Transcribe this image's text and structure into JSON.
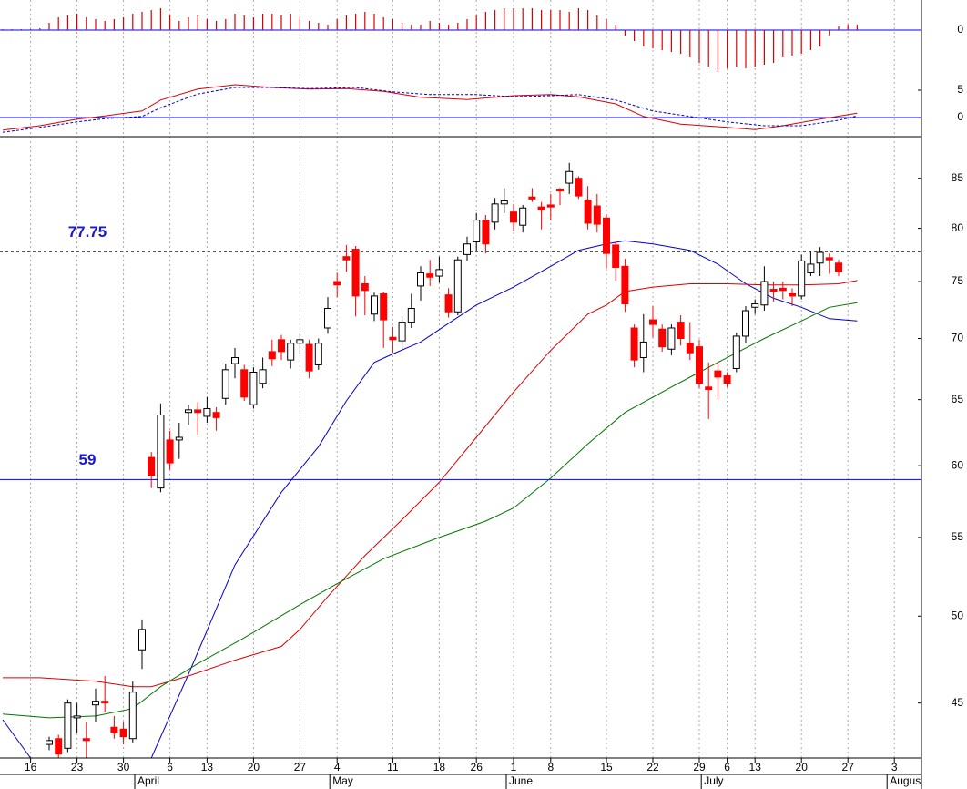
{
  "chart_data": [
    {
      "type": "bar",
      "color": "#dd0000",
      "ylim": [
        -58.5,
        16.5
      ],
      "yticks": [
        0
      ],
      "values": [
        0.5,
        0.5,
        0.5,
        0.5,
        1,
        4,
        7,
        8,
        9,
        7,
        6,
        5,
        6,
        7,
        9,
        10,
        11,
        12,
        8,
        5,
        7,
        8,
        6,
        5,
        6,
        9,
        8,
        7,
        9,
        9,
        8,
        9,
        7,
        5,
        4,
        3,
        6,
        8,
        9,
        10,
        9,
        7,
        6,
        4,
        3,
        3,
        5,
        4,
        3,
        4,
        6,
        8,
        10,
        11,
        12,
        12,
        12,
        12,
        11,
        11,
        11,
        10,
        12,
        11,
        8,
        6,
        3,
        -3,
        -6,
        -9,
        -10,
        -11,
        -12,
        -13,
        -15,
        -18,
        -20,
        -23,
        -21,
        -20,
        -21,
        -20,
        -19,
        -18,
        -15,
        -14,
        -13,
        -11,
        -9,
        -3,
        2,
        3,
        3
      ]
    },
    {
      "type": "line",
      "ylim": [
        -3.5,
        21.5
      ],
      "yticks": [
        0,
        5
      ],
      "zero_color": "#0000ff",
      "series": [
        {
          "color": "#dd0000",
          "dashed": false,
          "x": [
            0,
            4,
            8,
            11,
            15,
            17,
            21,
            25,
            29,
            33,
            37,
            41,
            45,
            50,
            55,
            59,
            62,
            66,
            69,
            73,
            78,
            81,
            84,
            88,
            92
          ],
          "values": [
            -2.3,
            -1.5,
            -0.3,
            0.3,
            1.2,
            3.2,
            5.2,
            6,
            5.5,
            5.2,
            5.3,
            4.8,
            3.7,
            3.3,
            4,
            4.2,
            3.8,
            2.5,
            0.2,
            -1.2,
            -1.8,
            -2.2,
            -1.5,
            -0.3,
            0.8
          ]
        },
        {
          "color": "#0000cc",
          "dashed": true,
          "x": [
            0,
            4,
            8,
            11,
            15,
            17,
            21,
            25,
            29,
            33,
            38,
            42,
            46,
            51,
            55,
            59,
            62,
            66,
            70,
            74,
            78,
            82,
            86,
            90,
            92
          ],
          "values": [
            -2.7,
            -1.8,
            -0.8,
            -0.2,
            0.2,
            1.8,
            4.3,
            5.5,
            5.5,
            5.3,
            5.5,
            4.7,
            4.2,
            4.2,
            3.8,
            4,
            4.2,
            3.2,
            1.2,
            0.2,
            -0.8,
            -1.5,
            -1.5,
            -0.5,
            0.3
          ]
        }
      ]
    },
    {
      "type": "candlestick",
      "log_scale": true,
      "grid": true,
      "ylim": [
        42.1,
        89.4
      ],
      "yticks": [
        85,
        80,
        75,
        70,
        65,
        60,
        55,
        50,
        45
      ],
      "up_color": "#ffffff",
      "down_color": "#ff0000",
      "categories": [
        null,
        null,
        null,
        "16",
        null,
        null,
        null,
        null,
        "23",
        null,
        null,
        null,
        null,
        "30",
        null,
        null,
        null,
        null,
        "6",
        null,
        null,
        null,
        "13",
        null,
        null,
        null,
        null,
        "20",
        null,
        null,
        null,
        null,
        "27",
        null,
        null,
        null,
        "4",
        null,
        null,
        null,
        null,
        null,
        "11",
        null,
        null,
        null,
        null,
        "18",
        null,
        null,
        null,
        "26",
        null,
        null,
        null,
        "1",
        null,
        null,
        null,
        "8",
        null,
        null,
        null,
        null,
        null,
        "15",
        null,
        null,
        null,
        null,
        "22",
        null,
        null,
        null,
        null,
        "29",
        null,
        null,
        "6",
        null,
        null,
        "13",
        null,
        null,
        null,
        null,
        "20",
        null,
        null,
        null,
        null,
        "27",
        null,
        null,
        null,
        null,
        "3",
        null,
        null
      ],
      "months": [
        null,
        null,
        null,
        null,
        null,
        null,
        null,
        null,
        null,
        null,
        null,
        null,
        null,
        null,
        null,
        "April",
        null,
        null,
        null,
        null,
        null,
        null,
        null,
        null,
        null,
        null,
        null,
        null,
        null,
        null,
        null,
        null,
        null,
        null,
        null,
        null,
        "May",
        null,
        null,
        null,
        null,
        null,
        null,
        null,
        null,
        null,
        null,
        null,
        null,
        null,
        null,
        null,
        null,
        null,
        null,
        "June",
        null,
        null,
        null,
        null,
        null,
        null,
        null,
        null,
        null,
        null,
        null,
        null,
        null,
        null,
        null,
        null,
        null,
        null,
        null,
        null,
        "July",
        null,
        null,
        null,
        null,
        null,
        null,
        null,
        null,
        null,
        null,
        null,
        null,
        null,
        null,
        null,
        null,
        null,
        null,
        null,
        "Augus",
        null,
        null
      ],
      "open": [
        null,
        null,
        null,
        null,
        null,
        42.8,
        43.1,
        42.6,
        44.2,
        43.1,
        44.9,
        45.1,
        43.7,
        43.6,
        43.1,
        48.0,
        60.6,
        58.4,
        61.9,
        61.9,
        64.0,
        64.2,
        63.7,
        64.0,
        65.1,
        67.9,
        67.4,
        64.6,
        66.3,
        68.9,
        69.9,
        68.2,
        69.6,
        69.5,
        67.8,
        70.9,
        75.0,
        77.3,
        78.0,
        74.8,
        72.1,
        73.9,
        70.1,
        69.8,
        71.4,
        74.6,
        75.7,
        75.5,
        73.8,
        72.3,
        77.5,
        78.7,
        80.8,
        80.6,
        82.4,
        81.6,
        80.3,
        83.1,
        82.1,
        82.3,
        83.9,
        84.5,
        85.0,
        82.8,
        82.2,
        81.0,
        78.4,
        76.4,
        70.9,
        68.4,
        71.6,
        70.8,
        69.1,
        71.4,
        69.6,
        69.3,
        66.0,
        67.3,
        66.9,
        67.5,
        70.2,
        72.7,
        72.9,
        74.3,
        74.4,
        73.9,
        73.7,
        75.8,
        76.7,
        77.2,
        76.7,
        null,
        null,
        null,
        null,
        null,
        null,
        null,
        null
      ],
      "high": [
        null,
        null,
        null,
        null,
        null,
        43.2,
        43.3,
        45.2,
        45.0,
        44.0,
        45.8,
        46.5,
        44.3,
        44.0,
        46.2,
        49.8,
        61.0,
        64.7,
        62.6,
        63.2,
        64.6,
        64.8,
        65.2,
        64.4,
        67.9,
        69.2,
        67.8,
        67.6,
        68.4,
        69.9,
        70.3,
        69.9,
        70.5,
        69.9,
        70.0,
        73.6,
        75.8,
        78.4,
        78.3,
        75.5,
        74.0,
        74.1,
        71.0,
        71.9,
        73.9,
        76.4,
        77.0,
        77.3,
        74.4,
        77.3,
        79.2,
        81.5,
        81.3,
        83.0,
        84.0,
        82.4,
        82.3,
        84.0,
        82.6,
        83.4,
        84.0,
        86.6,
        85.2,
        84.2,
        83.4,
        81.4,
        78.8,
        77.1,
        71.2,
        72.1,
        72.8,
        71.2,
        71.2,
        72.0,
        71.4,
        69.9,
        68.0,
        68.0,
        67.2,
        70.5,
        72.8,
        73.4,
        76.4,
        75.0,
        75.0,
        74.4,
        77.5,
        77.8,
        78.2,
        77.6,
        77.0,
        null,
        null,
        null,
        null,
        null,
        null,
        null,
        null
      ],
      "low": [
        null,
        null,
        null,
        null,
        null,
        42.5,
        42.1,
        42.4,
        43.4,
        42.1,
        44.0,
        44.5,
        43.1,
        42.8,
        42.9,
        46.9,
        58.4,
        58.1,
        59.7,
        60.5,
        63.0,
        62.3,
        63.2,
        62.6,
        64.6,
        66.7,
        64.9,
        64.3,
        65.9,
        67.7,
        68.2,
        67.5,
        68.7,
        66.7,
        67.4,
        70.4,
        73.6,
        75.9,
        71.9,
        72.0,
        71.5,
        69.2,
        68.8,
        69.1,
        70.9,
        73.3,
        74.6,
        74.9,
        71.8,
        72.0,
        76.9,
        77.8,
        77.6,
        79.9,
        81.5,
        79.7,
        79.6,
        82.6,
        79.9,
        80.8,
        82.3,
        83.4,
        82.9,
        79.9,
        79.6,
        76.2,
        75.1,
        72.3,
        67.6,
        67.2,
        70.1,
        68.9,
        68.6,
        69.4,
        68.2,
        65.9,
        63.5,
        65.0,
        66.0,
        67.2,
        69.6,
        72.1,
        72.4,
        73.2,
        73.4,
        72.8,
        73.4,
        75.5,
        75.5,
        75.7,
        75.5,
        null,
        null,
        null,
        null,
        null,
        null,
        null,
        null
      ],
      "close": [
        null,
        null,
        null,
        null,
        null,
        43.0,
        42.3,
        45.0,
        44.3,
        43.0,
        45.1,
        45.0,
        43.4,
        43.2,
        45.6,
        49.2,
        59.3,
        63.8,
        60.2,
        62.1,
        64.2,
        64.0,
        64.3,
        63.6,
        67.4,
        68.4,
        65.2,
        67.2,
        67.4,
        68.3,
        68.9,
        69.6,
        69.9,
        67.3,
        69.6,
        72.6,
        74.7,
        77.0,
        73.7,
        74.2,
        73.7,
        71.6,
        69.9,
        71.4,
        72.6,
        75.8,
        75.4,
        76.1,
        72.3,
        77.0,
        78.5,
        80.8,
        78.5,
        82.4,
        82.7,
        80.6,
        82.0,
        82.9,
        81.8,
        82.1,
        83.7,
        85.7,
        83.2,
        80.5,
        80.4,
        77.6,
        76.3,
        73.0,
        68.2,
        69.7,
        71.2,
        69.3,
        70.9,
        70.0,
        68.8,
        66.3,
        65.8,
        66.8,
        66.3,
        70.2,
        72.4,
        73.0,
        75.0,
        74.1,
        74.2,
        73.7,
        76.9,
        76.6,
        77.7,
        77.0,
        75.9,
        null,
        null,
        null,
        null,
        null,
        null,
        null,
        null
      ],
      "series": [
        {
          "color": "#0000cc",
          "x": [
            0,
            3,
            8,
            16,
            20,
            25,
            30,
            34,
            37,
            40,
            42,
            45,
            48,
            51,
            55,
            59,
            62,
            65,
            67,
            70,
            74,
            77,
            80,
            83,
            86,
            89,
            92
          ],
          "values": [
            44.1,
            42.1,
            null,
            42.1,
            46.6,
            53.2,
            58.1,
            61.4,
            64.9,
            68.0,
            68.7,
            69.7,
            71.3,
            72.9,
            74.5,
            76.4,
            77.9,
            78.5,
            78.8,
            78.5,
            77.9,
            76.6,
            74.8,
            73.5,
            72.7,
            71.7,
            71.5
          ]
        },
        {
          "color": "#dd0000",
          "x": [
            0,
            4,
            10,
            14,
            16,
            20,
            25,
            30,
            32,
            35,
            39,
            43,
            47,
            51,
            55,
            59,
            63,
            65,
            67,
            70,
            74,
            78,
            82,
            86,
            90,
            92
          ],
          "values": [
            46.4,
            46.4,
            46.2,
            45.9,
            45.9,
            46.5,
            47.4,
            48.2,
            49.2,
            51.2,
            53.8,
            56.2,
            58.8,
            62.1,
            65.6,
            69.0,
            72.1,
            72.9,
            74.1,
            74.5,
            74.8,
            74.8,
            74.7,
            74.7,
            74.8,
            75.1
          ]
        },
        {
          "color": "#007700",
          "x": [
            0,
            5,
            10,
            14,
            17,
            21,
            26,
            32,
            36,
            41,
            47,
            52,
            55,
            59,
            63,
            67,
            72,
            77,
            82,
            86,
            89,
            92
          ],
          "values": [
            44.4,
            44.2,
            44.3,
            44.7,
            45.9,
            47.2,
            48.7,
            50.7,
            52.0,
            53.6,
            55.0,
            56.1,
            57.0,
            59.1,
            61.6,
            64.0,
            66.0,
            68.0,
            70.0,
            71.5,
            72.7,
            73.1
          ]
        }
      ],
      "hlines": [
        {
          "value": 77.75,
          "color": "#555555",
          "style": "dotted"
        },
        {
          "value": 59,
          "color": "#0000ff",
          "style": "solid"
        }
      ]
    }
  ]
}
